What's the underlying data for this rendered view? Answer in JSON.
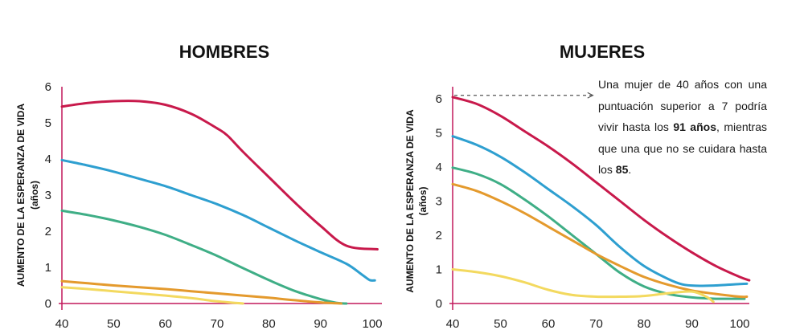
{
  "chart_data": [
    {
      "type": "line",
      "title": "HOMBRES",
      "ylabel": "AUMENTO DE LA ESPERANZA DE VIDA",
      "ylabel_unit": "(años)",
      "xlim": [
        40,
        100
      ],
      "ylim": [
        0,
        6
      ],
      "xticks": [
        40,
        50,
        60,
        70,
        80,
        90,
        100
      ],
      "yticks": [
        0,
        1,
        2,
        3,
        4,
        5,
        6
      ],
      "grid": false,
      "series": [
        {
          "color": "#c8194b",
          "x": [
            40,
            45,
            50,
            55,
            60,
            65,
            70,
            72,
            75,
            80,
            85,
            90,
            95,
            101
          ],
          "y": [
            5.45,
            5.55,
            5.6,
            5.6,
            5.5,
            5.25,
            4.85,
            4.65,
            4.2,
            3.5,
            2.8,
            2.15,
            1.6,
            1.5
          ]
        },
        {
          "color": "#2e9fd0",
          "x": [
            40,
            45,
            50,
            55,
            60,
            65,
            70,
            75,
            80,
            85,
            90,
            95,
            98,
            99.5,
            100.5
          ],
          "y": [
            3.97,
            3.82,
            3.65,
            3.45,
            3.25,
            3.0,
            2.75,
            2.45,
            2.1,
            1.75,
            1.42,
            1.1,
            0.8,
            0.65,
            0.64
          ]
        },
        {
          "color": "#3fae86",
          "x": [
            40,
            45,
            50,
            55,
            60,
            65,
            70,
            75,
            80,
            85,
            90,
            93,
            95
          ],
          "y": [
            2.57,
            2.45,
            2.3,
            2.12,
            1.9,
            1.62,
            1.32,
            0.98,
            0.65,
            0.35,
            0.12,
            0.02,
            0.0
          ]
        },
        {
          "color": "#e49a2d",
          "x": [
            40,
            45,
            50,
            55,
            60,
            65,
            70,
            75,
            80,
            85,
            90,
            94
          ],
          "y": [
            0.62,
            0.56,
            0.5,
            0.45,
            0.4,
            0.34,
            0.28,
            0.22,
            0.16,
            0.09,
            0.03,
            0.0
          ]
        },
        {
          "color": "#f3d95f",
          "x": [
            40,
            45,
            50,
            55,
            60,
            65,
            70,
            75
          ],
          "y": [
            0.45,
            0.4,
            0.34,
            0.28,
            0.22,
            0.15,
            0.06,
            0.0
          ]
        }
      ]
    },
    {
      "type": "line",
      "title": "MUJERES",
      "ylabel": "AUMENTO DE LA ESPERANZA DE VIDA",
      "ylabel_unit": "(años)",
      "xlim": [
        40,
        100
      ],
      "ylim": [
        0,
        6
      ],
      "xticks": [
        40,
        50,
        60,
        70,
        80,
        90,
        100
      ],
      "yticks": [
        0,
        1,
        2,
        3,
        4,
        5,
        6
      ],
      "grid": false,
      "series": [
        {
          "color": "#c8194b",
          "x": [
            40,
            45,
            50,
            55,
            60,
            65,
            70,
            75,
            80,
            85,
            90,
            95,
            100,
            102
          ],
          "y": [
            6.05,
            5.85,
            5.5,
            5.05,
            4.6,
            4.1,
            3.55,
            3.0,
            2.45,
            1.95,
            1.5,
            1.1,
            0.78,
            0.68
          ]
        },
        {
          "color": "#2e9fd0",
          "x": [
            40,
            45,
            50,
            55,
            60,
            65,
            70,
            75,
            80,
            85,
            88,
            91,
            95,
            100,
            101.5
          ],
          "y": [
            4.9,
            4.65,
            4.3,
            3.85,
            3.35,
            2.85,
            2.3,
            1.65,
            1.1,
            0.72,
            0.56,
            0.52,
            0.53,
            0.57,
            0.58
          ]
        },
        {
          "color": "#3fae86",
          "x": [
            40,
            45,
            50,
            55,
            60,
            65,
            70,
            75,
            80,
            85,
            90,
            95,
            101
          ],
          "y": [
            3.98,
            3.8,
            3.5,
            3.05,
            2.55,
            2.0,
            1.45,
            0.9,
            0.5,
            0.28,
            0.18,
            0.14,
            0.14
          ]
        },
        {
          "color": "#e49a2d",
          "x": [
            40,
            45,
            50,
            55,
            60,
            65,
            70,
            75,
            80,
            85,
            90,
            95,
            100,
            101.5
          ],
          "y": [
            3.5,
            3.3,
            3.0,
            2.65,
            2.25,
            1.85,
            1.45,
            1.1,
            0.78,
            0.55,
            0.38,
            0.28,
            0.2,
            0.2
          ]
        },
        {
          "color": "#f3d95f",
          "x": [
            40,
            45,
            50,
            55,
            60,
            65,
            70,
            75,
            80,
            85,
            90,
            93,
            94.5
          ],
          "y": [
            1.0,
            0.92,
            0.8,
            0.62,
            0.4,
            0.25,
            0.2,
            0.2,
            0.22,
            0.3,
            0.35,
            0.2,
            0.05
          ]
        }
      ]
    }
  ],
  "annotation": {
    "text_before": "Una mujer de 40 años con una puntuación superior a 7 podría vivir hasta los ",
    "bold1": "91 años",
    "text_middle": ", mientras que una que no se cuidara hasta los ",
    "bold2": "85",
    "text_after": ".",
    "arrow_x": [
      40,
      70
    ],
    "arrow_y": 6.1
  }
}
